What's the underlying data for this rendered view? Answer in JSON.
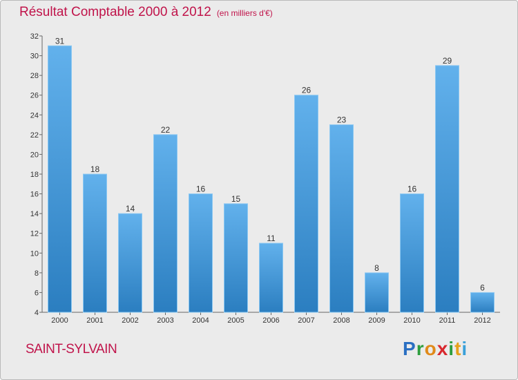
{
  "chart_data": {
    "type": "bar",
    "title": "Résultat Comptable 2000 à 2012",
    "subtitle": "(en milliers d'€)",
    "xlabel": "",
    "ylabel": "",
    "categories": [
      "2000",
      "2001",
      "2002",
      "2003",
      "2004",
      "2005",
      "2006",
      "2007",
      "2008",
      "2009",
      "2010",
      "2011",
      "2012"
    ],
    "values": [
      31,
      18,
      14,
      22,
      16,
      15,
      11,
      26,
      23,
      8,
      16,
      29,
      6
    ],
    "data_labels": [
      "31",
      "18",
      "14",
      "22",
      "16",
      "15",
      "11",
      "26",
      "23",
      "8",
      "16",
      "29",
      "6"
    ],
    "ylim": [
      4,
      32
    ],
    "yticks": [
      4,
      6,
      8,
      10,
      12,
      14,
      16,
      18,
      20,
      22,
      24,
      26,
      28,
      30,
      32
    ],
    "grid": false,
    "legend": "none",
    "bar_color_top": "#62b1ec",
    "bar_color_bottom": "#2b7ec0"
  },
  "footer": {
    "commune": "SAINT-SYLVAIN",
    "logo_letters": [
      "P",
      "r",
      "o",
      "x",
      "i",
      "t",
      "i"
    ],
    "logo_colors": [
      "#2a6fc2",
      "#2e9e3e",
      "#e08a1a",
      "#d8282e",
      "#2e9e3e",
      "#e7a11b",
      "#3aa0d8"
    ]
  },
  "colors": {
    "title": "#c0134a",
    "background": "#ebebeb",
    "axis": "#666666"
  }
}
